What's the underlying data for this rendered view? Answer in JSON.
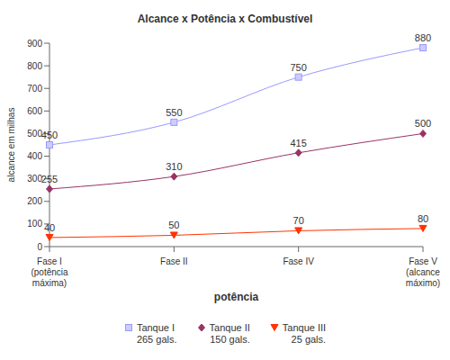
{
  "chart_data": {
    "type": "line",
    "title": "Alcance x Potência x Combustível",
    "x_label": "potência",
    "y_label": "alcance em milhas",
    "categories": [
      "Fase I (potência máxima)",
      "Fase II",
      "Fase IV",
      "Fase V (alcance máximo)"
    ],
    "series": [
      {
        "name": "Tanque I 265 gals.",
        "color": "#9999ff",
        "marker": "square",
        "values": [
          450,
          550,
          750,
          880
        ]
      },
      {
        "name": "Tanque II 150 gals.",
        "color": "#993366",
        "marker": "diamond",
        "values": [
          255,
          310,
          415,
          500
        ]
      },
      {
        "name": "Tanque III 25 gals.",
        "color": "#ff3300",
        "marker": "triangle",
        "values": [
          40,
          50,
          70,
          80
        ]
      }
    ],
    "ylim": [
      0,
      900
    ],
    "yticks": [
      0,
      100,
      200,
      300,
      400,
      500,
      600,
      700,
      800,
      900
    ],
    "grid": false,
    "legend": "bottom",
    "data_labels": true
  }
}
